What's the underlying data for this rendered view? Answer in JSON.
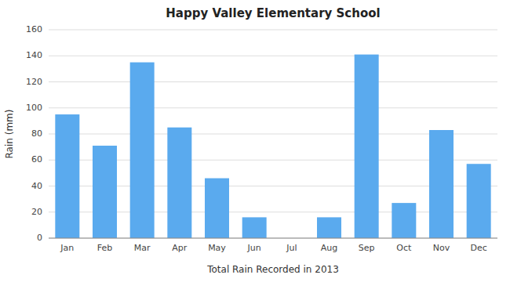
{
  "chart_data": {
    "type": "bar",
    "title": "Happy Valley Elementary School",
    "xlabel": "Total Rain Recorded in 2013",
    "ylabel": "Rain (mm)",
    "categories": [
      "Jan",
      "Feb",
      "Mar",
      "Apr",
      "May",
      "Jun",
      "Jul",
      "Aug",
      "Sep",
      "Oct",
      "Nov",
      "Dec"
    ],
    "values": [
      95,
      71,
      135,
      85,
      46,
      16,
      0,
      16,
      141,
      27,
      83,
      57
    ],
    "color": "#5aaaee",
    "ylim": [
      0,
      160
    ],
    "yticks": [
      0,
      20,
      40,
      60,
      80,
      100,
      120,
      140,
      160
    ],
    "grid": true
  }
}
